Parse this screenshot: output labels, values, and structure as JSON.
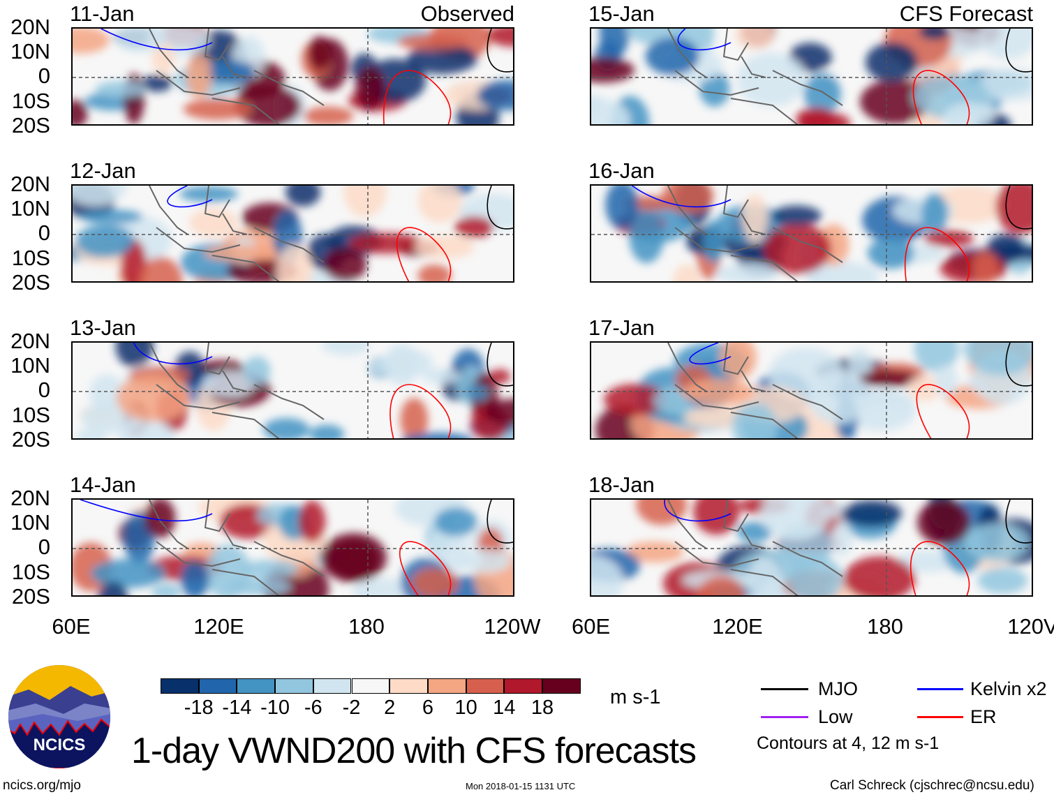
{
  "panels": [
    {
      "date": "11-Jan",
      "tag": "Observed"
    },
    {
      "date": "12-Jan"
    },
    {
      "date": "13-Jan"
    },
    {
      "date": "14-Jan"
    },
    {
      "date": "15-Jan",
      "tag": "CFS Forecast"
    },
    {
      "date": "16-Jan"
    },
    {
      "date": "17-Jan"
    },
    {
      "date": "18-Jan"
    }
  ],
  "lat_labels": [
    "20N",
    "10N",
    "0",
    "10S",
    "20S"
  ],
  "lon_labels_left": [
    "60E",
    "120E",
    "180",
    "120W"
  ],
  "lon_labels_right": [
    "60E",
    "120E",
    "180",
    "120V"
  ],
  "colorbar": {
    "colors": [
      "#08306b",
      "#2166ac",
      "#4393c3",
      "#92c5de",
      "#d1e5f0",
      "#f7f7f7",
      "#fddbc7",
      "#f4a582",
      "#d6604d",
      "#b2182b",
      "#67001f"
    ],
    "labels": [
      "-18",
      "-14",
      "-10",
      "-6",
      "-2",
      "2",
      "6",
      "10",
      "14",
      "18"
    ],
    "units": "m s-1"
  },
  "legend": {
    "items": [
      {
        "label": "MJO",
        "color": "#000000"
      },
      {
        "label": "Low",
        "color": "#a020f0"
      },
      {
        "label": "Kelvin x2",
        "color": "#0000ff"
      },
      {
        "label": "ER",
        "color": "#ff0000"
      }
    ],
    "note": "Contours at 4, 12 m s-1"
  },
  "logo": {
    "text": "NCICS"
  },
  "title": "1-day VWND200 with CFS forecasts",
  "footer": {
    "left": "ncics.org/mjo",
    "center": "Mon 2018-01-15 1131 UTC",
    "right": "Carl Schreck (cjschrec@ncsu.edu)"
  }
}
